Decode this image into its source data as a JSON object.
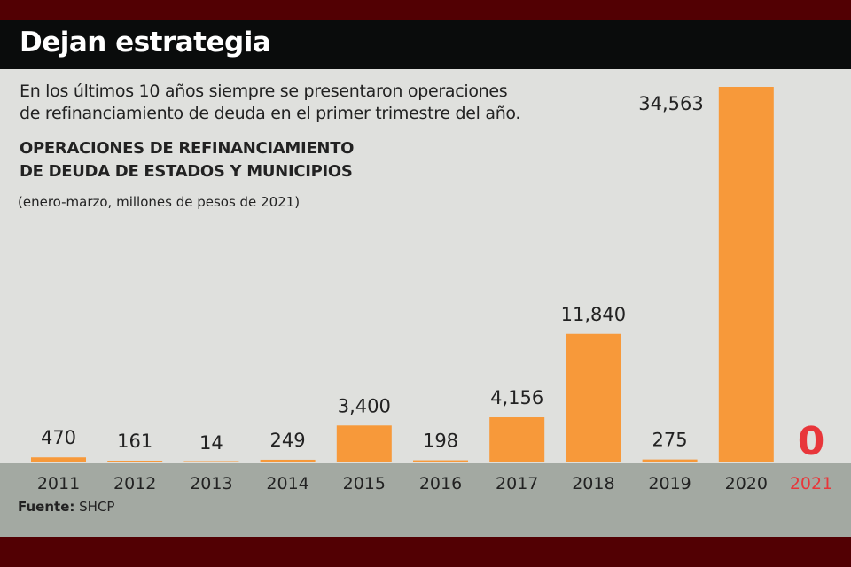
{
  "header": {
    "title": "Dejan estrategia"
  },
  "subtitle_lines": [
    "En los últimos 10 años siempre se presentaron operaciones",
    "de refinanciamiento de deuda en el primer trimestre del año."
  ],
  "chart_data": {
    "type": "bar",
    "title_lines": [
      "OPERACIONES DE REFINANCIAMIENTO",
      "DE DEUDA DE ESTADOS Y MUNICIPIOS"
    ],
    "units": "(enero-marzo, millones de pesos de 2021)",
    "categories": [
      "2011",
      "2012",
      "2013",
      "2014",
      "2015",
      "2016",
      "2017",
      "2018",
      "2019",
      "2020",
      "2021"
    ],
    "values": [
      470,
      161,
      14,
      249,
      3400,
      198,
      4156,
      11840,
      275,
      34563,
      0
    ],
    "labels": [
      "470",
      "161",
      "14",
      "249",
      "3,400",
      "198",
      "4,156",
      "11,840",
      "275",
      "34,563",
      "0"
    ],
    "highlight_index": 10,
    "ylim": [
      0,
      34563
    ],
    "grid": false,
    "colors": {
      "bar": "#f7993a",
      "text": "#222222",
      "highlight": "#e8363a"
    }
  },
  "source": {
    "label": "Fuente:",
    "value": "SHCP"
  }
}
